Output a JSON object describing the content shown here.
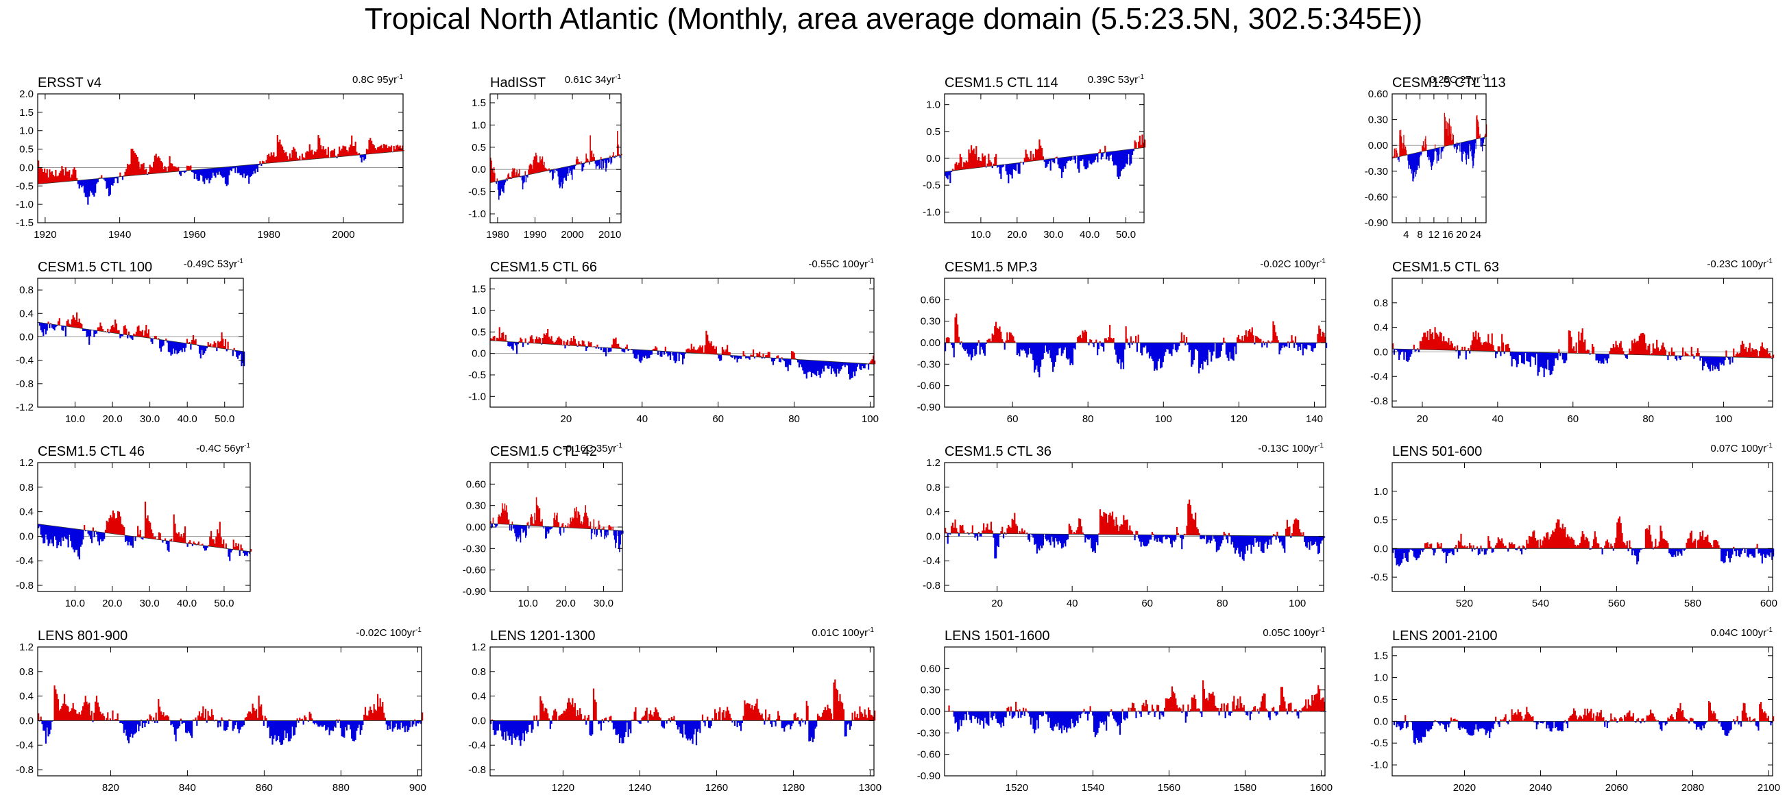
{
  "title": "Tropical North Atlantic (Monthly, area average domain (5.5:23.5N, 302.5:345E))",
  "colors": {
    "positive": "#e00000",
    "negative": "#0000e0",
    "axis": "#000000"
  },
  "chart_data": [
    {
      "type": "bar",
      "title": "ERSST v4",
      "trend": "0.8C 95yr",
      "trend_unit": "-1",
      "x_range": [
        1918,
        2016
      ],
      "y_range": [
        -1.5,
        2.0
      ],
      "y_ticks": [
        "2.0",
        "1.5",
        "1.0",
        "0.5",
        "0.0",
        "-0.5",
        "-1.0",
        "-1.5"
      ],
      "x_ticks": [
        "1920",
        "1940",
        "1960",
        "1980",
        "2000"
      ],
      "x_tick_values": [
        1920,
        1940,
        1960,
        1980,
        2000
      ],
      "baseline": [
        -0.45,
        0.45
      ],
      "amplitude": 0.55,
      "seed": 1
    },
    {
      "type": "bar",
      "title": "HadISST",
      "trend": "0.61C 34yr",
      "trend_unit": "-1",
      "x_range": [
        1978,
        2013
      ],
      "y_range": [
        -1.2,
        1.7
      ],
      "y_ticks": [
        "1.5",
        "1.0",
        "0.5",
        "0.0",
        "-0.5",
        "-1.0"
      ],
      "x_ticks": [
        "1980",
        "1990",
        "2000",
        "2010"
      ],
      "x_tick_values": [
        1980,
        1990,
        2000,
        2010
      ],
      "baseline": [
        -0.3,
        0.32
      ],
      "amplitude": 0.55,
      "seed": 2
    },
    {
      "type": "bar",
      "title": "CESM1.5 CTL 114",
      "trend": "0.39C 53yr",
      "trend_unit": "-1",
      "x_range": [
        0,
        55
      ],
      "y_range": [
        -1.2,
        1.2
      ],
      "y_ticks": [
        "1.0",
        "0.5",
        "0.0",
        "-0.5",
        "-1.0"
      ],
      "x_ticks": [
        "10.0",
        "20.0",
        "30.0",
        "40.0",
        "50.0"
      ],
      "x_tick_values": [
        10,
        20,
        30,
        40,
        50
      ],
      "baseline": [
        -0.25,
        0.2
      ],
      "amplitude": 0.55,
      "seed": 3
    },
    {
      "type": "bar",
      "title": "CESM1.5 CTL 113",
      "trend": "0.25C 27yr",
      "trend_unit": "-1",
      "x_range": [
        0,
        27
      ],
      "y_range": [
        -0.9,
        0.6
      ],
      "y_ticks": [
        "0.60",
        "0.30",
        "0.00",
        "-0.30",
        "-0.60",
        "-0.90"
      ],
      "x_ticks": [
        "4",
        "8",
        "12",
        "16",
        "20",
        "24"
      ],
      "x_tick_values": [
        4,
        8,
        12,
        16,
        20,
        24
      ],
      "baseline": [
        -0.15,
        0.1
      ],
      "amplitude": 0.35,
      "seed": 4
    },
    {
      "type": "bar",
      "title": "CESM1.5 CTL 100",
      "trend": "-0.49C 53yr",
      "trend_unit": "-1",
      "x_range": [
        0,
        55
      ],
      "y_range": [
        -1.2,
        1.0
      ],
      "y_ticks": [
        "0.8",
        "0.4",
        "0.0",
        "-0.4",
        "-0.8",
        "-1.2"
      ],
      "x_ticks": [
        "10.0",
        "20.0",
        "30.0",
        "40.0",
        "50.0"
      ],
      "x_tick_values": [
        10,
        20,
        30,
        40,
        50
      ],
      "baseline": [
        0.25,
        -0.25
      ],
      "amplitude": 0.4,
      "seed": 5
    },
    {
      "type": "bar",
      "title": "CESM1.5 CTL 66",
      "trend": "-0.55C 100yr",
      "trend_unit": "-1",
      "x_range": [
        0,
        101
      ],
      "y_range": [
        -1.25,
        1.75
      ],
      "y_ticks": [
        "1.5",
        "1.0",
        "0.5",
        "0.0",
        "-0.5",
        "-1.0"
      ],
      "x_ticks": [
        "20",
        "40",
        "60",
        "80",
        "100"
      ],
      "x_tick_values": [
        20,
        40,
        60,
        80,
        100
      ],
      "baseline": [
        0.3,
        -0.25
      ],
      "amplitude": 0.45,
      "seed": 6
    },
    {
      "type": "bar",
      "title": "CESM1.5 MP.3",
      "trend": "-0.02C 100yr",
      "trend_unit": "-1",
      "x_range": [
        42,
        143
      ],
      "y_range": [
        -0.9,
        0.9
      ],
      "y_ticks": [
        "0.60",
        "0.30",
        "0.00",
        "-0.30",
        "-0.60",
        "-0.90"
      ],
      "x_ticks": [
        "60",
        "80",
        "100",
        "120",
        "140"
      ],
      "x_tick_values": [
        60,
        80,
        100,
        120,
        140
      ],
      "baseline": [
        0.0,
        0.0
      ],
      "amplitude": 0.45,
      "seed": 7
    },
    {
      "type": "bar",
      "title": "CESM1.5 CTL 63",
      "trend": "-0.23C 100yr",
      "trend_unit": "-1",
      "x_range": [
        12,
        113
      ],
      "y_range": [
        -0.9,
        1.2
      ],
      "y_ticks": [
        "0.8",
        "0.4",
        "0.0",
        "-0.4",
        "-0.8"
      ],
      "x_ticks": [
        "20",
        "40",
        "60",
        "80",
        "100"
      ],
      "x_tick_values": [
        20,
        40,
        60,
        80,
        100
      ],
      "baseline": [
        0.05,
        -0.1
      ],
      "amplitude": 0.45,
      "seed": 8
    },
    {
      "type": "bar",
      "title": "CESM1.5 CTL 46",
      "trend": "-0.4C 56yr",
      "trend_unit": "-1",
      "x_range": [
        0,
        57
      ],
      "y_range": [
        -0.9,
        1.2
      ],
      "y_ticks": [
        "1.2",
        "0.8",
        "0.4",
        "0.0",
        "-0.4",
        "-0.8"
      ],
      "x_ticks": [
        "10.0",
        "20.0",
        "30.0",
        "40.0",
        "50.0"
      ],
      "x_tick_values": [
        10,
        20,
        30,
        40,
        50
      ],
      "baseline": [
        0.2,
        -0.25
      ],
      "amplitude": 0.45,
      "seed": 9
    },
    {
      "type": "bar",
      "title": "CESM1.5 CTL 42",
      "trend": "-0.16C 35yr",
      "trend_unit": "-1",
      "x_range": [
        0,
        35
      ],
      "y_range": [
        -0.9,
        0.9
      ],
      "y_ticks": [
        "0.60",
        "0.30",
        "0.00",
        "-0.30",
        "-0.60",
        "-0.90"
      ],
      "x_ticks": [
        "10.0",
        "20.0",
        "30.0"
      ],
      "x_tick_values": [
        10,
        20,
        30
      ],
      "baseline": [
        0.05,
        -0.05
      ],
      "amplitude": 0.4,
      "seed": 10
    },
    {
      "type": "bar",
      "title": "CESM1.5 CTL 36",
      "trend": "-0.13C 100yr",
      "trend_unit": "-1",
      "x_range": [
        6,
        107
      ],
      "y_range": [
        -0.9,
        1.2
      ],
      "y_ticks": [
        "1.2",
        "0.8",
        "0.4",
        "0.0",
        "-0.4",
        "-0.8"
      ],
      "x_ticks": [
        "20",
        "40",
        "60",
        "80",
        "100"
      ],
      "x_tick_values": [
        20,
        40,
        60,
        80,
        100
      ],
      "baseline": [
        0.05,
        0.0
      ],
      "amplitude": 0.45,
      "seed": 11
    },
    {
      "type": "bar",
      "title": "LENS 501-600",
      "trend": "0.07C 100yr",
      "trend_unit": "-1",
      "x_range": [
        501,
        601
      ],
      "y_range": [
        -0.75,
        1.5
      ],
      "y_ticks": [
        "1.0",
        "0.5",
        "0.0",
        "-0.5"
      ],
      "x_ticks": [
        "520",
        "540",
        "560",
        "580",
        "600"
      ],
      "x_tick_values": [
        520,
        540,
        560,
        580,
        600
      ],
      "baseline": [
        0.0,
        0.0
      ],
      "amplitude": 0.4,
      "seed": 12
    },
    {
      "type": "bar",
      "title": "LENS 801-900",
      "trend": "-0.02C 100yr",
      "trend_unit": "-1",
      "x_range": [
        801,
        901
      ],
      "y_range": [
        -0.9,
        1.2
      ],
      "y_ticks": [
        "1.2",
        "0.8",
        "0.4",
        "0.0",
        "-0.4",
        "-0.8"
      ],
      "x_ticks": [
        "820",
        "840",
        "860",
        "880",
        "900"
      ],
      "x_tick_values": [
        820,
        840,
        860,
        880,
        900
      ],
      "baseline": [
        0.0,
        0.0
      ],
      "amplitude": 0.45,
      "seed": 13
    },
    {
      "type": "bar",
      "title": "LENS 1201-1300",
      "trend": "0.01C 100yr",
      "trend_unit": "-1",
      "x_range": [
        1201,
        1301
      ],
      "y_range": [
        -0.9,
        1.2
      ],
      "y_ticks": [
        "1.2",
        "0.8",
        "0.4",
        "0.0",
        "-0.4",
        "-0.8"
      ],
      "x_ticks": [
        "1220",
        "1240",
        "1260",
        "1280",
        "1300"
      ],
      "x_tick_values": [
        1220,
        1240,
        1260,
        1280,
        1300
      ],
      "baseline": [
        0.0,
        0.0
      ],
      "amplitude": 0.45,
      "seed": 14
    },
    {
      "type": "bar",
      "title": "LENS 1501-1600",
      "trend": "0.05C 100yr",
      "trend_unit": "-1",
      "x_range": [
        1501,
        1601
      ],
      "y_range": [
        -0.9,
        0.9
      ],
      "y_ticks": [
        "0.60",
        "0.30",
        "0.00",
        "-0.30",
        "-0.60",
        "-0.90"
      ],
      "x_ticks": [
        "1520",
        "1540",
        "1560",
        "1580",
        "1600"
      ],
      "x_tick_values": [
        1520,
        1540,
        1560,
        1580,
        1600
      ],
      "baseline": [
        0.0,
        0.0
      ],
      "amplitude": 0.4,
      "seed": 15
    },
    {
      "type": "bar",
      "title": "LENS 2001-2100",
      "trend": "0.04C 100yr",
      "trend_unit": "-1",
      "x_range": [
        2001,
        2101
      ],
      "y_range": [
        -1.25,
        1.7
      ],
      "y_ticks": [
        "1.5",
        "1.0",
        "0.5",
        "0.0",
        "-0.5",
        "-1.0"
      ],
      "x_ticks": [
        "2020",
        "2040",
        "2060",
        "2080",
        "2100"
      ],
      "x_tick_values": [
        2020,
        2040,
        2060,
        2080,
        2100
      ],
      "baseline": [
        0.0,
        0.0
      ],
      "amplitude": 0.45,
      "seed": 16
    }
  ]
}
